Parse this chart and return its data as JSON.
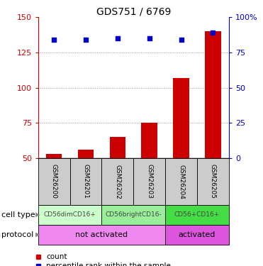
{
  "title": "GDS751 / 6769",
  "samples": [
    "GSM26200",
    "GSM26201",
    "GSM26202",
    "GSM26203",
    "GSM26204",
    "GSM26205"
  ],
  "counts": [
    53,
    56,
    65,
    75,
    107,
    140
  ],
  "percentile_ranks": [
    134,
    134,
    135,
    135,
    134,
    139
  ],
  "ylim_left": [
    50,
    150
  ],
  "ylim_right": [
    0,
    100
  ],
  "yticks_left": [
    50,
    75,
    100,
    125,
    150
  ],
  "yticks_right": [
    0,
    25,
    50,
    75,
    100
  ],
  "bar_color": "#cc0000",
  "dot_color": "#0000cc",
  "cell_type_groups": [
    {
      "label": "CD56dimCD16+",
      "span": [
        0,
        2
      ],
      "color": "#ccffcc"
    },
    {
      "label": "CD56brightCD16-",
      "span": [
        2,
        4
      ],
      "color": "#99ee99"
    },
    {
      "label": "CD56+CD16+",
      "span": [
        4,
        6
      ],
      "color": "#44dd44"
    }
  ],
  "protocol_groups": [
    {
      "label": "not activated",
      "span": [
        0,
        4
      ],
      "color": "#ee88ee"
    },
    {
      "label": "activated",
      "span": [
        4,
        6
      ],
      "color": "#dd55dd"
    }
  ],
  "title_fontsize": 10,
  "tick_fontsize": 8,
  "left_tick_color": "#cc0000",
  "right_tick_color": "#0000cc",
  "sample_box_color": "#cccccc",
  "bar_bottom": 50,
  "sample_label_fontsize": 6.5,
  "cell_label_fontsize": 6.5,
  "proto_label_fontsize": 8,
  "row_label_fontsize": 8,
  "legend_fontsize": 7.5
}
